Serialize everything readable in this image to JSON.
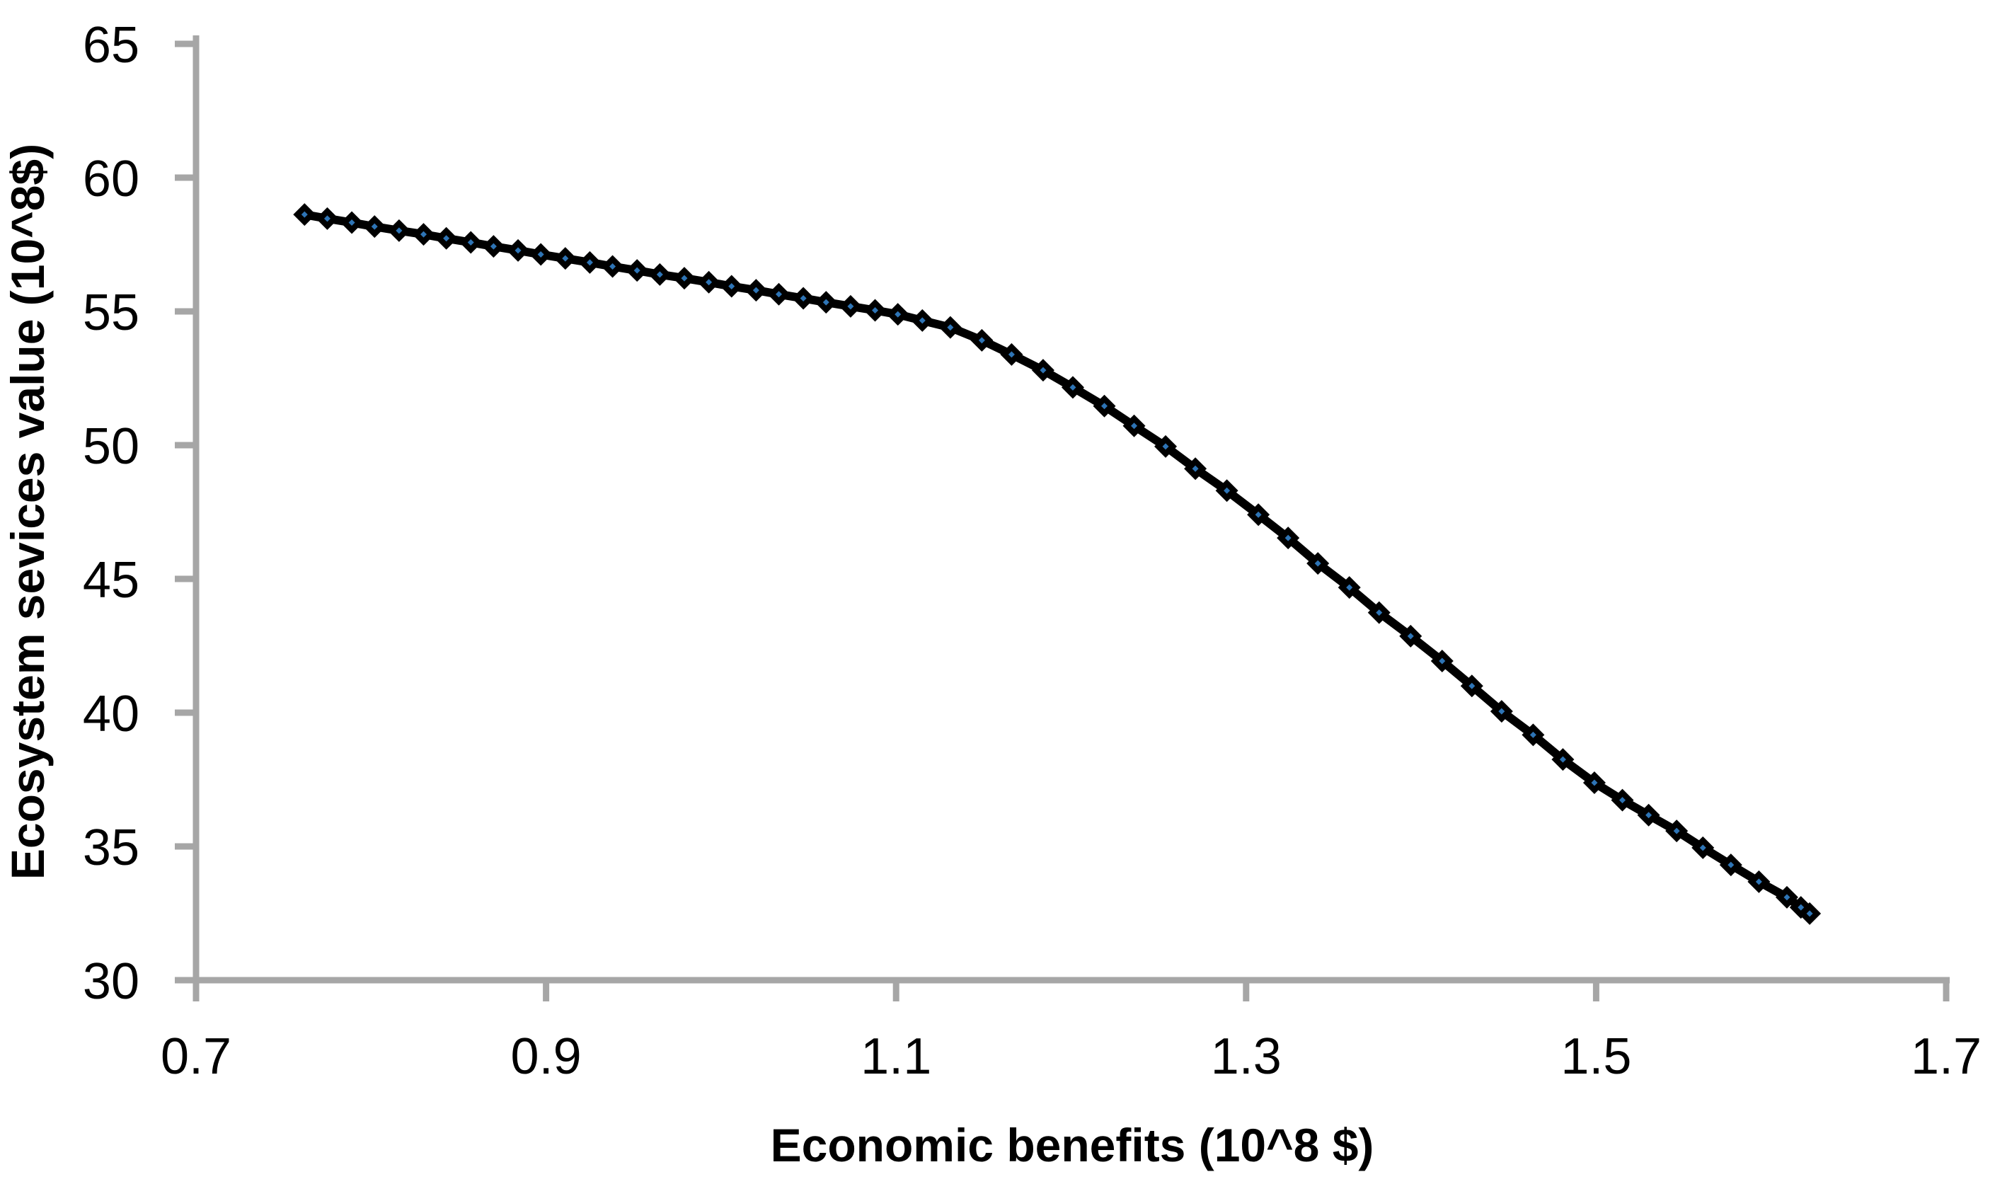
{
  "chart_data": {
    "type": "line",
    "title": "",
    "xlabel": "Economic benefits (10^8 $)",
    "ylabel": "Ecosystem sevices value (10^8$)",
    "xlim": [
      0.7,
      1.7
    ],
    "ylim": [
      30,
      65
    ],
    "x_tick_labels": [
      "0.7",
      "0.9",
      "1.1",
      "1.3",
      "1.5",
      "1.7"
    ],
    "y_tick_labels": [
      "30",
      "35",
      "40",
      "45",
      "50",
      "55",
      "60",
      "65"
    ],
    "grid": false,
    "legend": false,
    "axis_color": "#A6A6A6",
    "text_color": "#000000",
    "series": [
      {
        "name": "ecosystem-services-vs-economic-benefits",
        "line_color": "#000000",
        "marker": "diamond",
        "marker_color": "#000000",
        "marker_center_color": "#2E74B5",
        "points": [
          [
            0.762,
            58.62
          ],
          [
            0.775,
            58.47
          ],
          [
            0.789,
            58.32
          ],
          [
            0.802,
            58.17
          ],
          [
            0.816,
            58.02
          ],
          [
            0.83,
            57.88
          ],
          [
            0.843,
            57.73
          ],
          [
            0.857,
            57.58
          ],
          [
            0.87,
            57.43
          ],
          [
            0.884,
            57.28
          ],
          [
            0.897,
            57.13
          ],
          [
            0.911,
            56.98
          ],
          [
            0.925,
            56.83
          ],
          [
            0.938,
            56.68
          ],
          [
            0.952,
            56.53
          ],
          [
            0.965,
            56.38
          ],
          [
            0.979,
            56.24
          ],
          [
            0.993,
            56.09
          ],
          [
            1.006,
            55.94
          ],
          [
            1.02,
            55.79
          ],
          [
            1.033,
            55.64
          ],
          [
            1.047,
            55.49
          ],
          [
            1.06,
            55.34
          ],
          [
            1.074,
            55.19
          ],
          [
            1.088,
            55.04
          ],
          [
            1.101,
            54.89
          ],
          [
            1.115,
            54.66
          ],
          [
            1.131,
            54.4
          ],
          [
            1.149,
            53.92
          ],
          [
            1.166,
            53.39
          ],
          [
            1.184,
            52.8
          ],
          [
            1.201,
            52.16
          ],
          [
            1.219,
            51.46
          ],
          [
            1.236,
            50.72
          ],
          [
            1.254,
            49.95
          ],
          [
            1.271,
            49.12
          ],
          [
            1.289,
            48.3
          ],
          [
            1.307,
            47.4
          ],
          [
            1.324,
            46.53
          ],
          [
            1.341,
            45.58
          ],
          [
            1.359,
            44.68
          ],
          [
            1.376,
            43.74
          ],
          [
            1.394,
            42.86
          ],
          [
            1.412,
            41.93
          ],
          [
            1.429,
            41.0
          ],
          [
            1.446,
            40.05
          ],
          [
            1.464,
            39.17
          ],
          [
            1.481,
            38.25
          ],
          [
            1.499,
            37.38
          ],
          [
            1.515,
            36.73
          ],
          [
            1.53,
            36.17
          ],
          [
            1.546,
            35.58
          ],
          [
            1.561,
            34.95
          ],
          [
            1.577,
            34.31
          ],
          [
            1.593,
            33.68
          ],
          [
            1.609,
            33.1
          ],
          [
            1.617,
            32.72
          ],
          [
            1.622,
            32.49
          ]
        ]
      }
    ]
  }
}
